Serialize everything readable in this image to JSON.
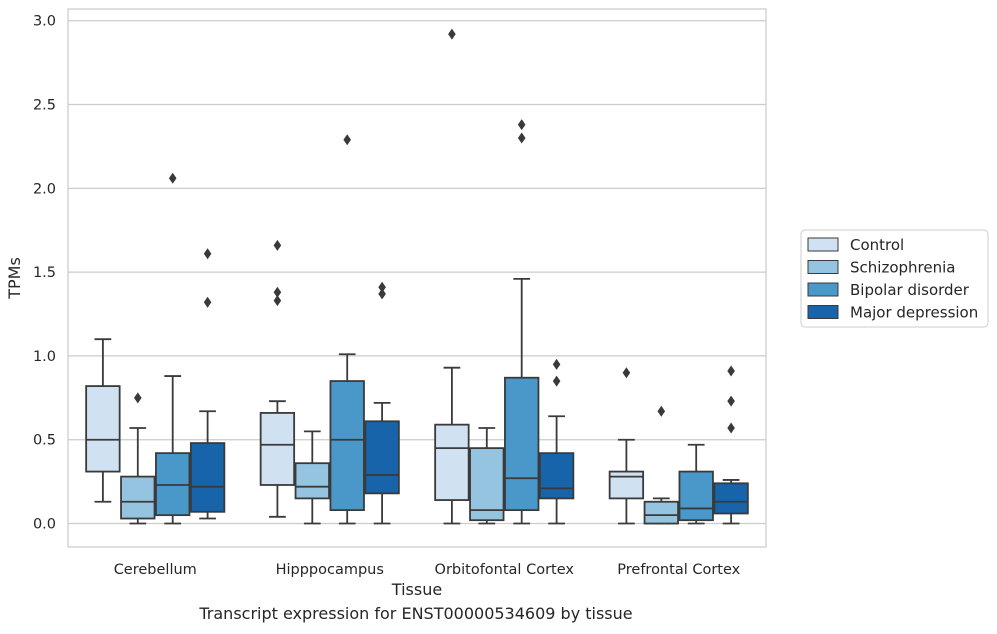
{
  "caption": "Transcript expression for ENST00000534609 by tissue",
  "chart_data": {
    "type": "boxplot",
    "title": "",
    "xlabel": "Tissue",
    "ylabel": "TPMs",
    "ylim": [
      -0.14,
      3.07
    ],
    "yticks": [
      0.0,
      0.5,
      1.0,
      1.5,
      2.0,
      2.5,
      3.0
    ],
    "ytick_labels": [
      "0.0",
      "0.5",
      "1.0",
      "1.5",
      "2.0",
      "2.5",
      "3.0"
    ],
    "grid": "horizontal",
    "legend_position": "right",
    "categories": [
      "Cerebellum",
      "Hipppocampus",
      "Orbitofontal Cortex",
      "Prefrontal Cortex"
    ],
    "series": [
      {
        "name": "Control",
        "color": "#d0e1f2",
        "boxes": [
          {
            "whisker_low": 0.13,
            "q1": 0.31,
            "median": 0.5,
            "q3": 0.82,
            "whisker_high": 1.1,
            "outliers": []
          },
          {
            "whisker_low": 0.04,
            "q1": 0.23,
            "median": 0.47,
            "q3": 0.66,
            "whisker_high": 0.73,
            "outliers": [
              1.33,
              1.38,
              1.66
            ]
          },
          {
            "whisker_low": 0.0,
            "q1": 0.14,
            "median": 0.45,
            "q3": 0.59,
            "whisker_high": 0.93,
            "outliers": [
              2.92
            ]
          },
          {
            "whisker_low": 0.0,
            "q1": 0.15,
            "median": 0.28,
            "q3": 0.31,
            "whisker_high": 0.5,
            "outliers": [
              0.9
            ]
          }
        ]
      },
      {
        "name": "Schizophrenia",
        "color": "#94c4df",
        "boxes": [
          {
            "whisker_low": 0.0,
            "q1": 0.03,
            "median": 0.13,
            "q3": 0.28,
            "whisker_high": 0.57,
            "outliers": [
              0.75
            ]
          },
          {
            "whisker_low": 0.0,
            "q1": 0.15,
            "median": 0.22,
            "q3": 0.36,
            "whisker_high": 0.55,
            "outliers": []
          },
          {
            "whisker_low": 0.0,
            "q1": 0.02,
            "median": 0.08,
            "q3": 0.45,
            "whisker_high": 0.57,
            "outliers": []
          },
          {
            "whisker_low": 0.0,
            "q1": 0.0,
            "median": 0.05,
            "q3": 0.13,
            "whisker_high": 0.15,
            "outliers": [
              0.67
            ]
          }
        ]
      },
      {
        "name": "Bipolar disorder",
        "color": "#4a98c9",
        "boxes": [
          {
            "whisker_low": 0.0,
            "q1": 0.05,
            "median": 0.23,
            "q3": 0.42,
            "whisker_high": 0.88,
            "outliers": [
              2.06
            ]
          },
          {
            "whisker_low": 0.0,
            "q1": 0.08,
            "median": 0.5,
            "q3": 0.85,
            "whisker_high": 1.01,
            "outliers": [
              2.29
            ]
          },
          {
            "whisker_low": 0.0,
            "q1": 0.08,
            "median": 0.27,
            "q3": 0.87,
            "whisker_high": 1.46,
            "outliers": [
              2.3,
              2.38
            ]
          },
          {
            "whisker_low": 0.0,
            "q1": 0.02,
            "median": 0.09,
            "q3": 0.31,
            "whisker_high": 0.47,
            "outliers": []
          }
        ]
      },
      {
        "name": "Major depression",
        "color": "#1764ab",
        "boxes": [
          {
            "whisker_low": 0.03,
            "q1": 0.07,
            "median": 0.22,
            "q3": 0.48,
            "whisker_high": 0.67,
            "outliers": [
              1.32,
              1.61
            ]
          },
          {
            "whisker_low": 0.0,
            "q1": 0.18,
            "median": 0.29,
            "q3": 0.61,
            "whisker_high": 0.72,
            "outliers": [
              1.37,
              1.41
            ]
          },
          {
            "whisker_low": 0.0,
            "q1": 0.15,
            "median": 0.21,
            "q3": 0.42,
            "whisker_high": 0.64,
            "outliers": [
              0.85,
              0.95
            ]
          },
          {
            "whisker_low": 0.0,
            "q1": 0.06,
            "median": 0.13,
            "q3": 0.24,
            "whisker_high": 0.26,
            "outliers": [
              0.57,
              0.73,
              0.91
            ]
          }
        ]
      }
    ]
  }
}
